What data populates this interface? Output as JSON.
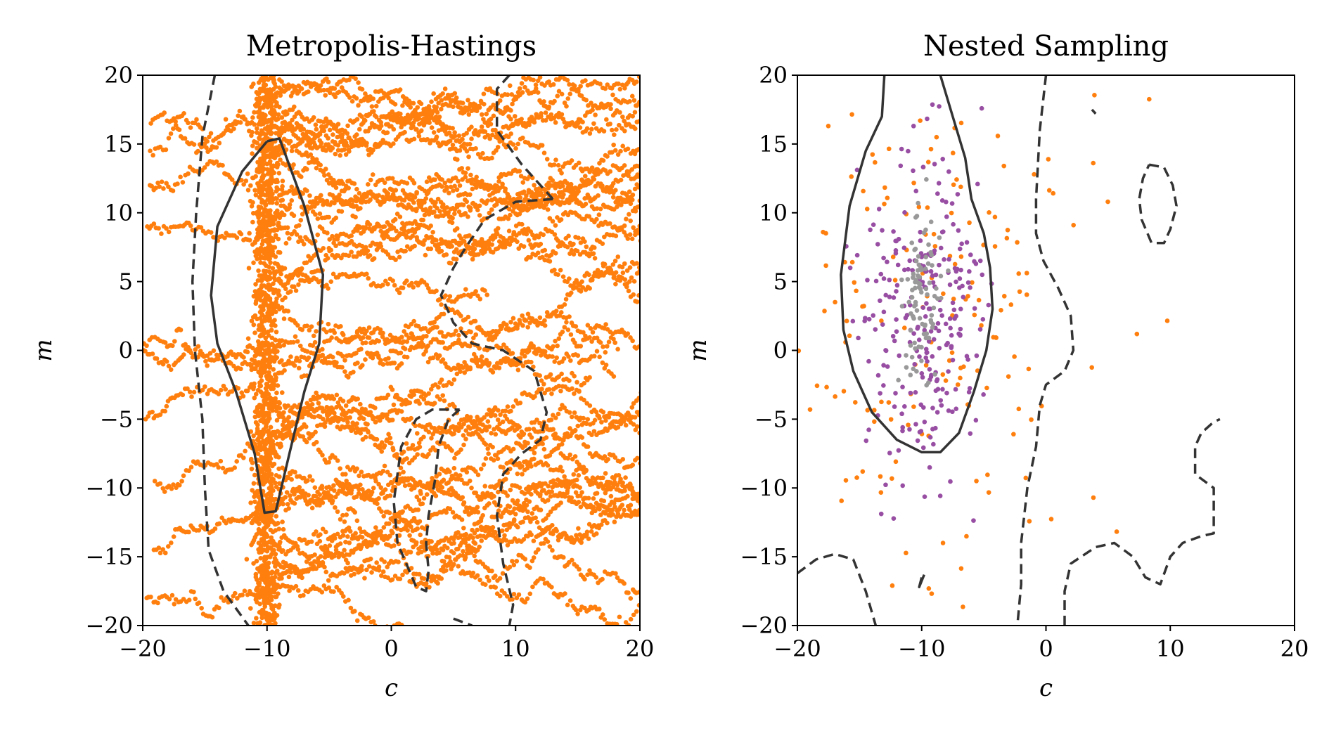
{
  "chart_data": [
    {
      "type": "scatter",
      "title": "Metropolis-Hastings",
      "xlabel": "c",
      "ylabel": "m",
      "xlim": [
        -20,
        20
      ],
      "ylim": [
        -20,
        20
      ],
      "xticks": [
        -20,
        -10,
        0,
        10,
        20
      ],
      "yticks": [
        -20,
        -15,
        -10,
        -5,
        0,
        5,
        10,
        15,
        20
      ],
      "xtick_labels": [
        "−20",
        "−10",
        "0",
        "10",
        "20"
      ],
      "ytick_labels": [
        "−20",
        "−15",
        "−10",
        "−5",
        "0",
        "5",
        "10",
        "15",
        "20"
      ],
      "series": [
        {
          "color": "#ff7f0e",
          "kind": "chains",
          "chain_starts_m": [
            16.5,
            14.5,
            9.0,
            0.5,
            -5.0,
            -9.5,
            -14.5,
            -18.0,
            0.0,
            12.0
          ],
          "chain_start_c": -20,
          "dense_column": {
            "c_center": -10,
            "c_halfwidth": 1.0,
            "m_range": [
              -20,
              20
            ]
          }
        }
      ],
      "contours": [
        {
          "style": "solid",
          "points": [
            [
              -10,
              15.2
            ],
            [
              -9,
              15.4
            ],
            [
              -7,
              10.5
            ],
            [
              -5.5,
              5.5
            ],
            [
              -5.8,
              0.5
            ],
            [
              -7,
              -3
            ],
            [
              -8.2,
              -7.5
            ],
            [
              -9.3,
              -11.7
            ],
            [
              -10.2,
              -11.8
            ],
            [
              -11,
              -7.5
            ],
            [
              -12.5,
              -3
            ],
            [
              -14,
              0.5
            ],
            [
              -14.5,
              4
            ],
            [
              -14,
              9
            ],
            [
              -12,
              13
            ],
            [
              -10,
              15.2
            ]
          ]
        },
        {
          "style": "dashed",
          "points": [
            [
              -14.2,
              20
            ],
            [
              -15.2,
              15.5
            ],
            [
              -15.7,
              10
            ],
            [
              -16,
              5
            ],
            [
              -15.8,
              0
            ],
            [
              -15.2,
              -5
            ],
            [
              -15,
              -10
            ],
            [
              -14.7,
              -14.5
            ],
            [
              -13.5,
              -17.5
            ],
            [
              -11.5,
              -20
            ]
          ]
        },
        {
          "style": "dashed",
          "points": [
            [
              9.5,
              20
            ],
            [
              8.5,
              19
            ],
            [
              8.5,
              16
            ],
            [
              10.5,
              13.5
            ],
            [
              13,
              11
            ]
          ]
        },
        {
          "style": "dashed",
          "points": [
            [
              13,
              11
            ],
            [
              10,
              10.8
            ],
            [
              7.5,
              9.5
            ],
            [
              6,
              7.5
            ],
            [
              5,
              6
            ],
            [
              4,
              4
            ],
            [
              5,
              2
            ],
            [
              6.5,
              0.5
            ],
            [
              9,
              0
            ],
            [
              11.5,
              -1.5
            ],
            [
              12.5,
              -4.5
            ],
            [
              12,
              -6.5
            ],
            [
              10.5,
              -7.5
            ],
            [
              9,
              -9
            ],
            [
              8.5,
              -12
            ],
            [
              9,
              -15.5
            ],
            [
              9.8,
              -18.5
            ],
            [
              9.5,
              -20
            ]
          ]
        },
        {
          "style": "dashed",
          "points": [
            [
              5.5,
              -4.3
            ],
            [
              4.6,
              -5
            ],
            [
              3.8,
              -7
            ],
            [
              3.5,
              -9.5
            ],
            [
              3,
              -12
            ],
            [
              2.8,
              -14
            ],
            [
              3,
              -16
            ],
            [
              2.8,
              -17.5
            ],
            [
              2,
              -17.2
            ],
            [
              0.5,
              -14
            ],
            [
              0.2,
              -11
            ],
            [
              0.8,
              -7
            ],
            [
              2,
              -5
            ],
            [
              3.3,
              -4.3
            ],
            [
              5.5,
              -4.3
            ]
          ]
        },
        {
          "style": "dashed",
          "points": [
            [
              5,
              -19.5
            ],
            [
              6.5,
              -20
            ]
          ]
        }
      ]
    },
    {
      "type": "scatter",
      "title": "Nested Sampling",
      "xlabel": "c",
      "ylabel": "m",
      "xlim": [
        -20,
        20
      ],
      "ylim": [
        -20,
        20
      ],
      "xticks": [
        -20,
        -10,
        0,
        10,
        20
      ],
      "yticks": [
        -20,
        -15,
        -10,
        -5,
        0,
        5,
        10,
        15,
        20
      ],
      "xtick_labels": [
        "−20",
        "−10",
        "0",
        "10",
        "20"
      ],
      "ytick_labels": [
        "−20",
        "−15",
        "−10",
        "−5",
        "0",
        "5",
        "10",
        "15",
        "20"
      ],
      "series": [
        {
          "color": "#ff7f0e",
          "kind": "scatter",
          "count": 180,
          "center": [
            -10,
            3
          ],
          "spread": [
            7,
            10
          ]
        },
        {
          "color": "#984ea3",
          "kind": "scatter",
          "count": 260,
          "center": [
            -10,
            3
          ],
          "spread": [
            2.5,
            6
          ]
        },
        {
          "color": "#999999",
          "kind": "scatter",
          "count": 90,
          "center": [
            -10,
            4
          ],
          "spread": [
            0.8,
            3
          ]
        }
      ],
      "contours": [
        {
          "style": "solid",
          "points": [
            [
              -13,
              20
            ],
            [
              -13.2,
              17
            ],
            [
              -14.5,
              14.5
            ],
            [
              -15.8,
              10.5
            ],
            [
              -16.5,
              5.5
            ],
            [
              -16.3,
              1.5
            ],
            [
              -15.5,
              -1.5
            ],
            [
              -14,
              -4.5
            ],
            [
              -12,
              -6.5
            ],
            [
              -10,
              -7.4
            ],
            [
              -8.5,
              -7.4
            ],
            [
              -7,
              -6
            ],
            [
              -5.8,
              -3
            ],
            [
              -4.8,
              0
            ],
            [
              -4.3,
              3
            ],
            [
              -4.5,
              6
            ],
            [
              -5,
              8.5
            ],
            [
              -6,
              11
            ],
            [
              -6.5,
              14
            ],
            [
              -7.5,
              17
            ],
            [
              -8.5,
              20
            ]
          ]
        },
        {
          "style": "dashed",
          "points": [
            [
              0,
              20
            ],
            [
              -0.5,
              16
            ],
            [
              -0.8,
              11
            ],
            [
              -0.8,
              8.5
            ],
            [
              -0.2,
              6.5
            ],
            [
              1,
              4.5
            ],
            [
              2,
              2.5
            ],
            [
              2.2,
              0
            ],
            [
              1.5,
              -1.5
            ],
            [
              0,
              -2.5
            ],
            [
              -0.5,
              -4
            ],
            [
              -0.8,
              -7
            ],
            [
              -1.5,
              -10
            ],
            [
              -2,
              -14
            ],
            [
              -2,
              -17
            ],
            [
              -2.3,
              -20
            ]
          ]
        },
        {
          "style": "dashed",
          "points": [
            [
              -20,
              -16.2
            ],
            [
              -18.5,
              -15.2
            ],
            [
              -17,
              -14.8
            ],
            [
              -15.5,
              -15.2
            ],
            [
              -14.5,
              -17.5
            ],
            [
              -13.7,
              -20
            ]
          ]
        },
        {
          "style": "dashed",
          "points": [
            [
              1.5,
              -20
            ],
            [
              1.5,
              -17.5
            ],
            [
              2,
              -15.5
            ],
            [
              4,
              -14.3
            ],
            [
              5.5,
              -14
            ],
            [
              7,
              -15
            ],
            [
              8,
              -16.5
            ],
            [
              9.2,
              -17
            ],
            [
              10,
              -15
            ],
            [
              11,
              -14
            ],
            [
              12.5,
              -13.5
            ],
            [
              13.5,
              -13.3
            ],
            [
              13.5,
              -10
            ],
            [
              12,
              -9
            ],
            [
              12,
              -7
            ],
            [
              12.5,
              -6
            ],
            [
              13.5,
              -5.2
            ],
            [
              14,
              -5
            ]
          ]
        },
        {
          "style": "dashed",
          "points": [
            [
              8.3,
              13.5
            ],
            [
              9.5,
              13.3
            ],
            [
              10.2,
              12
            ],
            [
              10.5,
              10.5
            ],
            [
              10,
              8.8
            ],
            [
              9.5,
              7.8
            ],
            [
              8.5,
              7.8
            ],
            [
              7.7,
              9.5
            ],
            [
              7.5,
              11
            ],
            [
              7.8,
              12.5
            ],
            [
              8.3,
              13.5
            ]
          ]
        },
        {
          "style": "dashed",
          "points": [
            [
              3.7,
              17.5
            ],
            [
              4,
              17.2
            ]
          ]
        },
        {
          "style": "solid",
          "points": [
            [
              -10,
              -16.5
            ],
            [
              -10.2,
              -17.2
            ],
            [
              -9.8,
              -16.3
            ]
          ]
        }
      ]
    }
  ]
}
